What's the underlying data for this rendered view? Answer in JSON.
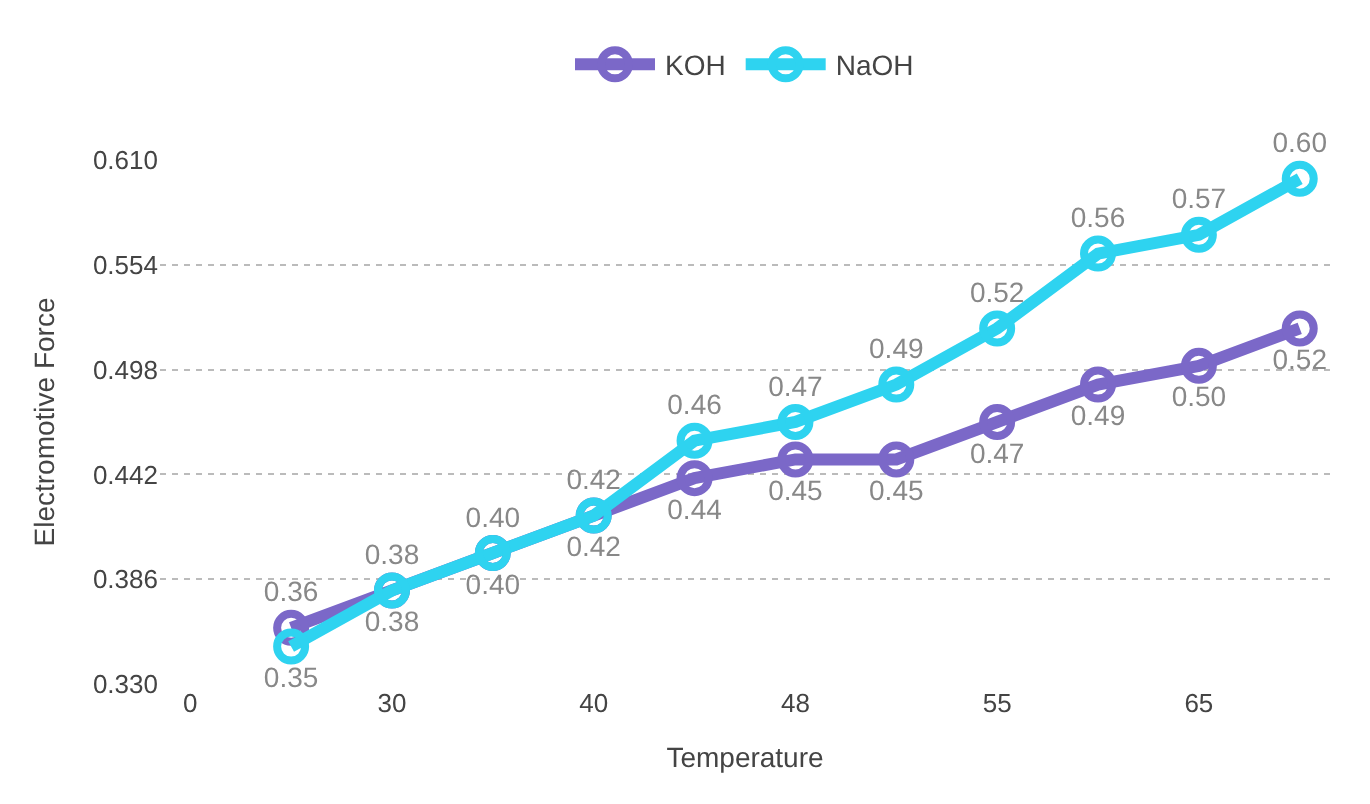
{
  "chart_data": {
    "type": "line",
    "xlabel": "Temperature",
    "ylabel": "Electromotive Force",
    "categories": [
      "0",
      null,
      "30",
      null,
      "40",
      null,
      "48",
      null,
      "55",
      null,
      "65",
      null
    ],
    "series": [
      {
        "name": "KOH",
        "color": "#7b68c8",
        "values": [
          null,
          0.36,
          0.38,
          0.4,
          0.42,
          0.44,
          0.45,
          0.45,
          0.47,
          0.49,
          0.5,
          0.52
        ],
        "value_labels": [
          null,
          "0.36",
          "0.38",
          "0.40",
          "0.42",
          "0.44",
          "0.45",
          "0.45",
          "0.47",
          "0.49",
          "0.50",
          "0.52"
        ]
      },
      {
        "name": "NaOH",
        "color": "#2ed3f0",
        "values": [
          null,
          0.35,
          0.38,
          0.4,
          0.42,
          0.46,
          0.47,
          0.49,
          0.52,
          0.56,
          0.57,
          0.6
        ],
        "value_labels": [
          null,
          "0.35",
          "0.38",
          "0.40",
          "0.42",
          "0.46",
          "0.47",
          "0.49",
          "0.52",
          "0.56",
          "0.57",
          "0.60"
        ]
      }
    ],
    "ylim": [
      0.33,
      0.61
    ],
    "yticks": [
      {
        "value": 0.33,
        "label": "0.330"
      },
      {
        "value": 0.386,
        "label": "0.386"
      },
      {
        "value": 0.442,
        "label": "0.442"
      },
      {
        "value": 0.498,
        "label": "0.498"
      },
      {
        "value": 0.554,
        "label": "0.554"
      },
      {
        "value": 0.61,
        "label": "0.610"
      }
    ],
    "grid": "y",
    "legend": "top",
    "marker": "circle",
    "line_style": "solid"
  }
}
